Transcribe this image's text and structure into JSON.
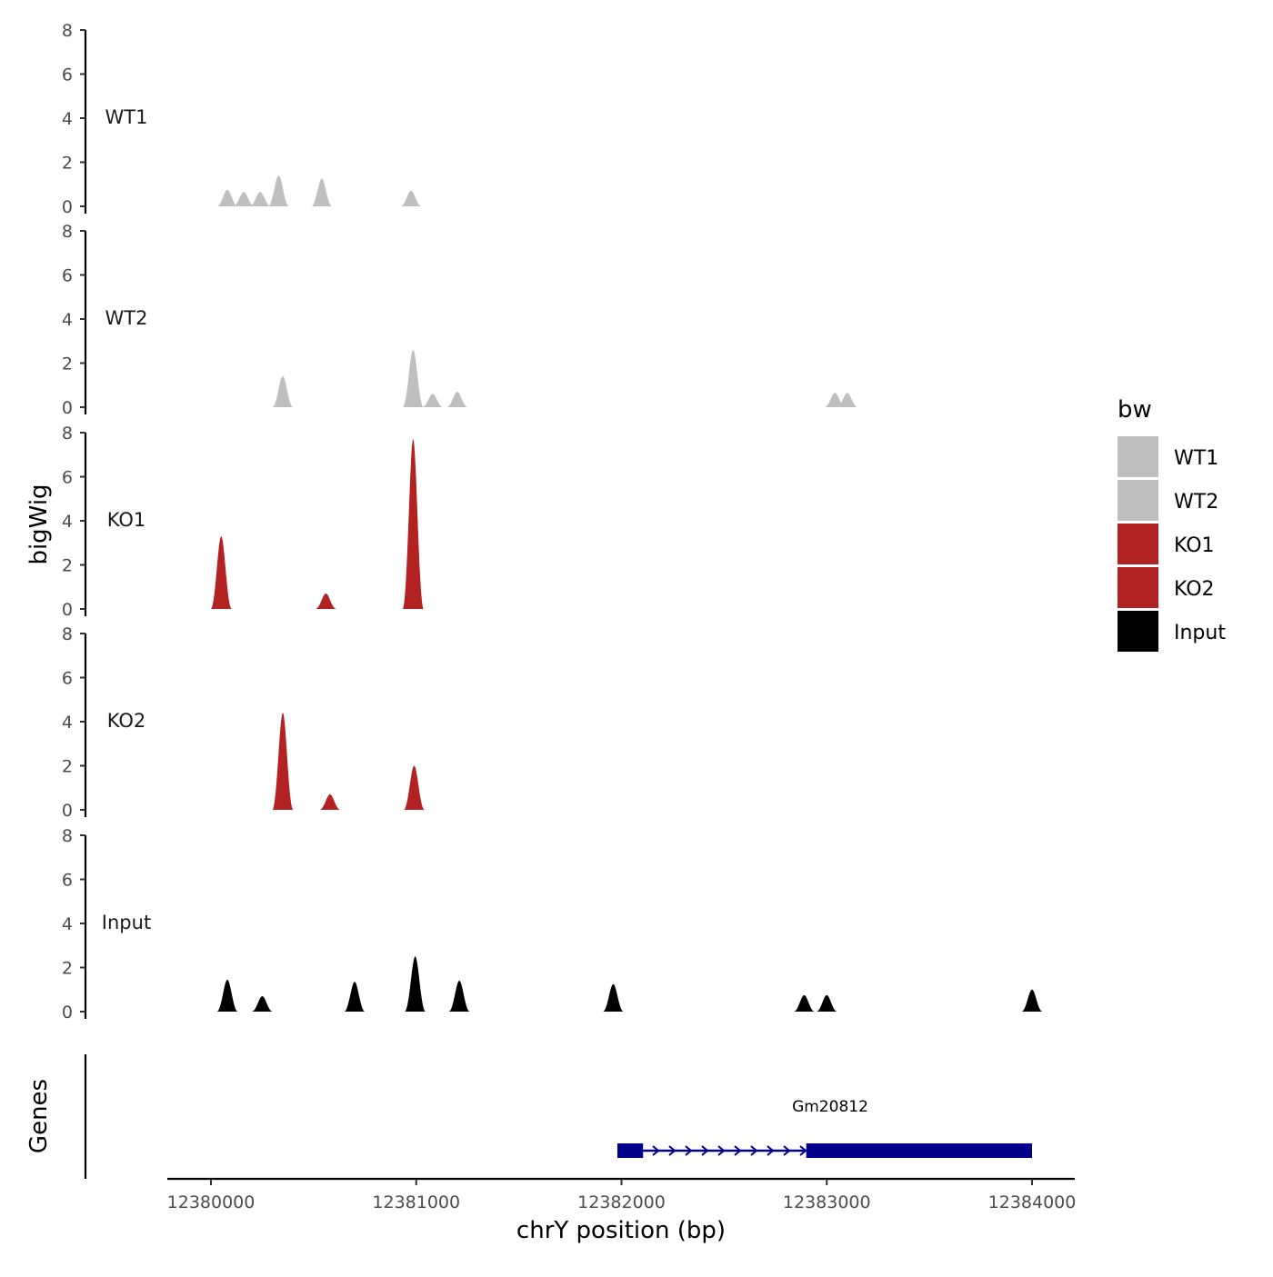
{
  "chart_data": {
    "type": "area",
    "ylabel": "bigWig",
    "xlabel": "chrY position (bp)",
    "genes_label": "Genes",
    "ylim": [
      0,
      8
    ],
    "yticks": [
      0,
      2,
      4,
      6,
      8
    ],
    "xlim": [
      12379770,
      12384200
    ],
    "xticks": [
      12380000,
      12381000,
      12382000,
      12383000,
      12384000
    ],
    "legend": {
      "title": "bw",
      "position": "right",
      "items": [
        {
          "label": "WT1",
          "color": "#bfbfbf"
        },
        {
          "label": "WT2",
          "color": "#bfbfbf"
        },
        {
          "label": "KO1",
          "color": "#b22222"
        },
        {
          "label": "KO2",
          "color": "#b22222"
        },
        {
          "label": "Input",
          "color": "#000000"
        }
      ]
    },
    "tracks": [
      {
        "name": "WT1",
        "color": "#bfbfbf",
        "peaks": [
          {
            "center": 12380080,
            "height": 0.75,
            "width": 35
          },
          {
            "center": 12380160,
            "height": 0.65,
            "width": 32
          },
          {
            "center": 12380240,
            "height": 0.65,
            "width": 30
          },
          {
            "center": 12380330,
            "height": 1.4,
            "width": 30
          },
          {
            "center": 12380540,
            "height": 1.25,
            "width": 33
          },
          {
            "center": 12380975,
            "height": 0.7,
            "width": 33
          }
        ]
      },
      {
        "name": "WT2",
        "color": "#bfbfbf",
        "peaks": [
          {
            "center": 12380350,
            "height": 1.4,
            "width": 30
          },
          {
            "center": 12380985,
            "height": 2.6,
            "width": 28
          },
          {
            "center": 12381080,
            "height": 0.6,
            "width": 30
          },
          {
            "center": 12381200,
            "height": 0.7,
            "width": 28
          },
          {
            "center": 12383040,
            "height": 0.65,
            "width": 30
          },
          {
            "center": 12383100,
            "height": 0.65,
            "width": 30
          }
        ]
      },
      {
        "name": "KO1",
        "color": "#b22222",
        "peaks": [
          {
            "center": 12380050,
            "height": 3.3,
            "width": 32
          },
          {
            "center": 12380560,
            "height": 0.7,
            "width": 28
          },
          {
            "center": 12380985,
            "height": 7.7,
            "width": 30
          }
        ]
      },
      {
        "name": "KO2",
        "color": "#b22222",
        "peaks": [
          {
            "center": 12380350,
            "height": 4.4,
            "width": 28
          },
          {
            "center": 12380580,
            "height": 0.7,
            "width": 55
          },
          {
            "center": 12380990,
            "height": 2.0,
            "width": 32
          }
        ]
      },
      {
        "name": "Input",
        "color": "#000000",
        "peaks": [
          {
            "center": 12380080,
            "height": 1.45,
            "width": 28
          },
          {
            "center": 12380250,
            "height": 0.7,
            "width": 28
          },
          {
            "center": 12380700,
            "height": 1.35,
            "width": 42
          },
          {
            "center": 12380995,
            "height": 2.5,
            "width": 30
          },
          {
            "center": 12381210,
            "height": 1.4,
            "width": 28
          },
          {
            "center": 12381960,
            "height": 1.25,
            "width": 32
          },
          {
            "center": 12382890,
            "height": 0.75,
            "width": 26
          },
          {
            "center": 12383000,
            "height": 0.75,
            "width": 26
          },
          {
            "center": 12384000,
            "height": 1.0,
            "width": 22
          }
        ]
      }
    ],
    "gene": {
      "name": "Gm20812",
      "strand": "+",
      "start": 12381980,
      "end": 12384000,
      "color": "#00008b",
      "exons": [
        [
          12381980,
          12382105
        ],
        [
          12382900,
          12384000
        ]
      ]
    }
  }
}
